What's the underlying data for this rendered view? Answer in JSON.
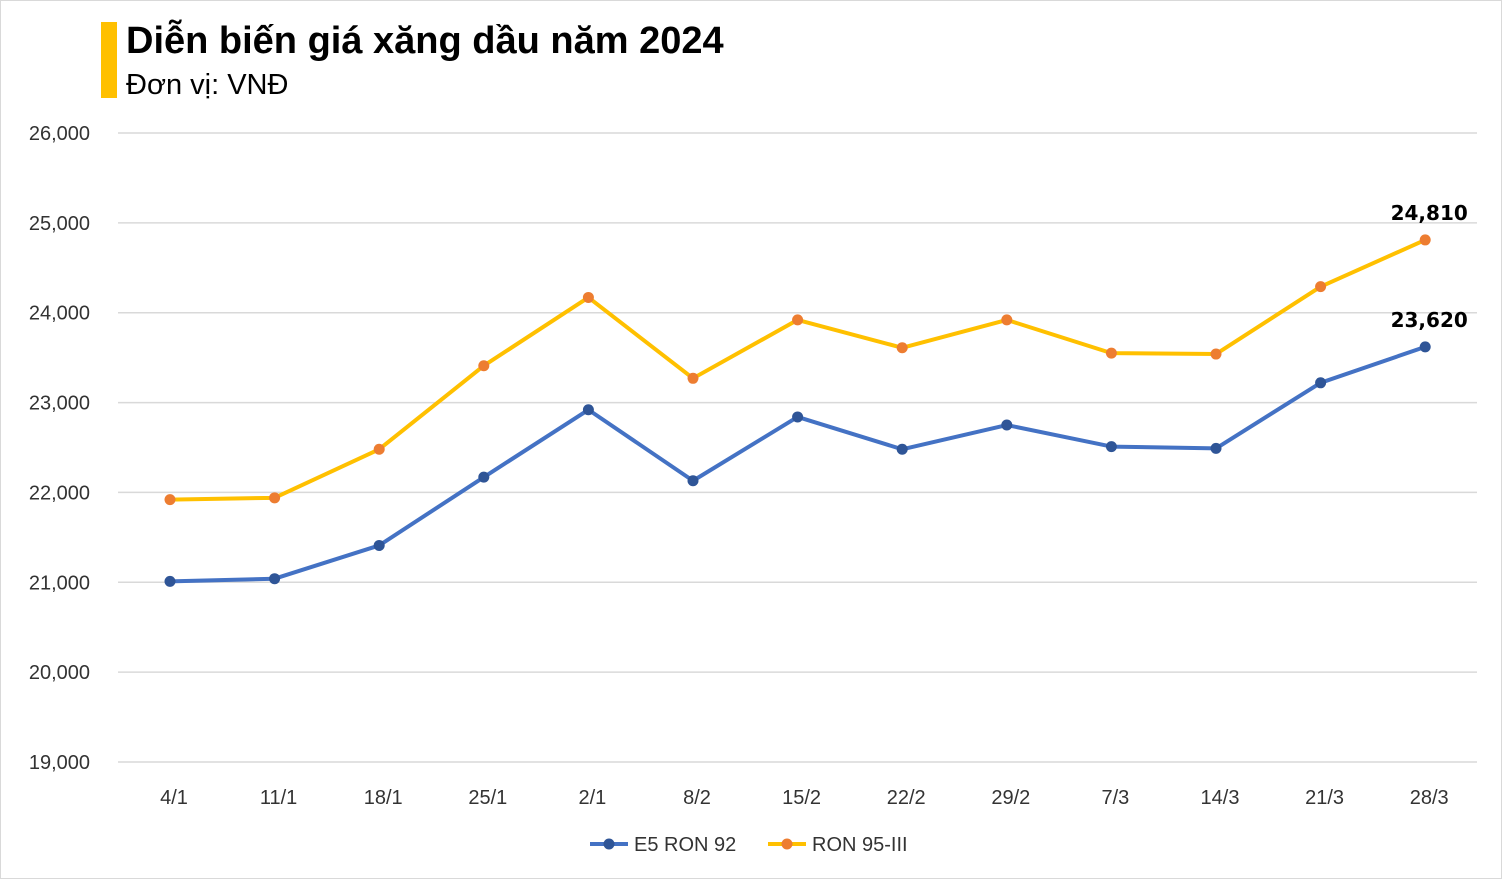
{
  "header": {
    "title": "Diễn biến giá xăng dầu năm 2024",
    "subtitle": "Đơn vị: VNĐ",
    "accent_color": "#ffc000"
  },
  "chart_data": {
    "type": "line",
    "title": "Diễn biến giá xăng dầu năm 2024",
    "subtitle": "Đơn vị: VNĐ",
    "xlabel": "",
    "ylabel": "",
    "ylim": [
      19000,
      26000
    ],
    "y_ticks": [
      26000,
      25000,
      24000,
      23000,
      22000,
      21000,
      20000,
      19000
    ],
    "y_tick_labels": [
      "26,000",
      "25,000",
      "24,000",
      "23,000",
      "22,000",
      "21,000",
      "20,000",
      "19,000"
    ],
    "grid": "horizontal",
    "legend_position": "bottom-center",
    "categories": [
      "4/1",
      "11/1",
      "18/1",
      "25/1",
      "2/1",
      "8/2",
      "15/2",
      "22/2",
      "29/2",
      "7/3",
      "14/3",
      "21/3",
      "28/3"
    ],
    "series": [
      {
        "name": "E5 RON 92",
        "color": "#4472c4",
        "marker_color": "#2f5597",
        "values": [
          21010,
          21040,
          21410,
          22170,
          22920,
          22130,
          22840,
          22480,
          22750,
          22510,
          22490,
          23220,
          23620
        ],
        "end_label": "23,620"
      },
      {
        "name": "RON 95-III",
        "color": "#ffc000",
        "marker_color": "#ed7d31",
        "values": [
          21920,
          21940,
          22480,
          23410,
          24170,
          23270,
          23920,
          23610,
          23920,
          23550,
          23540,
          24290,
          24810
        ],
        "end_label": "24,810"
      }
    ]
  }
}
